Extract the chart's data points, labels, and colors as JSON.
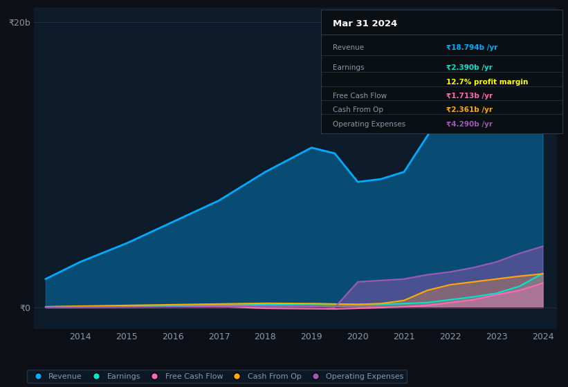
{
  "background_color": "#0d1117",
  "plot_bg_color": "#0d1b2a",
  "years": [
    2013.25,
    2014,
    2015,
    2016,
    2017,
    2018,
    2019,
    2019.5,
    2020,
    2020.5,
    2021,
    2021.5,
    2022,
    2022.5,
    2023,
    2023.5,
    2024
  ],
  "revenue": [
    2.0,
    3.2,
    4.5,
    6.0,
    7.5,
    9.5,
    11.2,
    10.8,
    8.8,
    9.0,
    9.5,
    12.0,
    14.5,
    16.0,
    17.5,
    18.2,
    18.794
  ],
  "earnings": [
    0.05,
    0.08,
    0.1,
    0.12,
    0.15,
    0.2,
    0.25,
    0.24,
    0.22,
    0.23,
    0.28,
    0.35,
    0.55,
    0.75,
    1.0,
    1.5,
    2.39
  ],
  "free_cash_flow": [
    0.02,
    0.03,
    0.05,
    0.06,
    0.08,
    -0.05,
    -0.08,
    -0.1,
    -0.05,
    0.0,
    0.05,
    0.15,
    0.35,
    0.55,
    0.9,
    1.2,
    1.713
  ],
  "cash_from_op": [
    0.05,
    0.1,
    0.15,
    0.2,
    0.25,
    0.3,
    0.28,
    0.25,
    0.22,
    0.28,
    0.5,
    1.2,
    1.6,
    1.8,
    2.0,
    2.2,
    2.361
  ],
  "operating_expenses": [
    0.01,
    0.02,
    0.03,
    0.05,
    0.08,
    0.1,
    0.1,
    0.0,
    1.8,
    1.9,
    2.0,
    2.3,
    2.5,
    2.8,
    3.2,
    3.8,
    4.29
  ],
  "revenue_color": "#00aaff",
  "earnings_color": "#00e5cc",
  "fcf_color": "#ff69b4",
  "cashop_color": "#ffaa00",
  "opex_color": "#9b59b6",
  "grid_color": "#1e2d3d",
  "text_color": "#8899aa",
  "box_bg": "#0a0f14",
  "box_border": "#2a3a4a",
  "info_box": {
    "title": "Mar 31 2024",
    "revenue_val": "₹18.794b /yr",
    "earnings_val": "₹2.390b /yr",
    "margin_val": "12.7% profit margin",
    "fcf_val": "₹1.713b /yr",
    "cashop_val": "₹2.361b /yr",
    "opex_val": "₹4.290b /yr"
  },
  "legend_labels": [
    "Revenue",
    "Earnings",
    "Free Cash Flow",
    "Cash From Op",
    "Operating Expenses"
  ]
}
